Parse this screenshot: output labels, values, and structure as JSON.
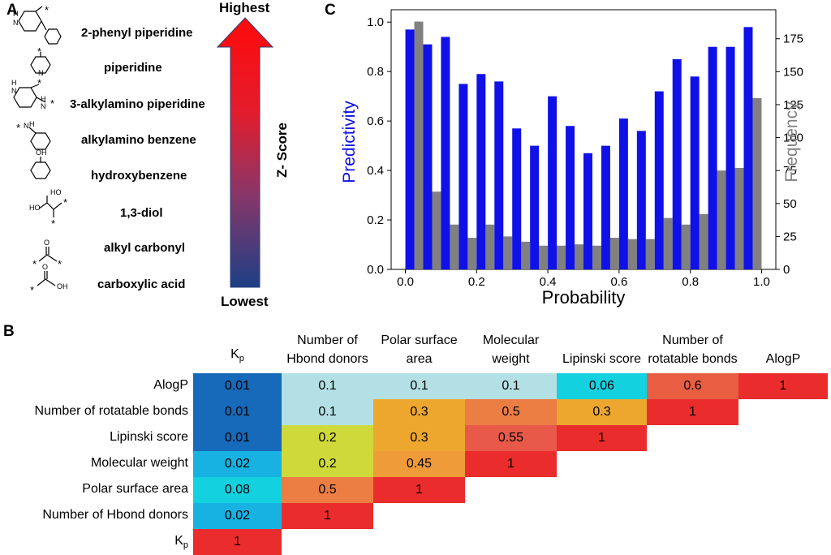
{
  "panels": {
    "a": "A",
    "b": "B",
    "c": "C"
  },
  "panel_a": {
    "fragments": [
      "2-phenyl piperidine",
      "piperidine",
      "3-alkylamino piperidine",
      "alkylamino benzene",
      "hydroxybenzene",
      "1,3-diol",
      "alkyl carbonyl",
      "carboxylic acid"
    ],
    "arrow_top_label": "Highest",
    "arrow_bottom_label": "Lowest",
    "arrow_axis_label": "Z- Score",
    "structure_text": {
      "star": "*",
      "nh": "N",
      "h": "H",
      "oh": "OH",
      "ho": "HO",
      "o": "O"
    }
  },
  "chart_data": [
    {
      "type": "bar",
      "panel": "C",
      "xlabel": "Probability",
      "x_ticks": [
        "0.0",
        "0.2",
        "0.4",
        "0.6",
        "0.8",
        "1.0"
      ],
      "xlim": [
        -0.04,
        1.04
      ],
      "bin_centers": [
        0.025,
        0.075,
        0.125,
        0.175,
        0.225,
        0.275,
        0.325,
        0.375,
        0.425,
        0.475,
        0.525,
        0.575,
        0.625,
        0.675,
        0.725,
        0.775,
        0.825,
        0.875,
        0.925,
        0.975
      ],
      "series": [
        {
          "name": "Predictivity",
          "axis": "left",
          "color": "#1010e8",
          "values": [
            0.97,
            0.91,
            0.94,
            0.75,
            0.79,
            0.76,
            0.57,
            0.5,
            0.7,
            0.58,
            0.47,
            0.5,
            0.61,
            0.56,
            0.72,
            0.85,
            0.78,
            0.9,
            0.9,
            0.98
          ]
        },
        {
          "name": "Frequency",
          "axis": "right",
          "color": "#808080",
          "values": [
            188,
            59,
            34,
            24,
            34,
            25,
            21,
            18,
            18,
            19,
            18,
            24,
            23,
            23,
            39,
            34,
            42,
            75,
            77,
            130
          ]
        }
      ],
      "ylabel_left": "Predictivity",
      "ylabel_right": "Frequency",
      "ylim_left": [
        0,
        1.05
      ],
      "ylim_right": [
        0,
        197
      ],
      "yticks_left": [
        "0.0",
        "0.2",
        "0.4",
        "0.6",
        "0.8",
        "1.0"
      ],
      "yticks_right": [
        "0",
        "25",
        "50",
        "75",
        "100",
        "125",
        "150",
        "175"
      ]
    },
    {
      "type": "heatmap",
      "panel": "B",
      "columns": [
        "Kp",
        "Number of Hbond donors",
        "Polar surface area",
        "Molecular weight",
        "Lipinski score",
        "Number of rotatable bonds",
        "AlogP"
      ],
      "rows": [
        "AlogP",
        "Number of rotatable bonds",
        "Lipinski score",
        "Molecular weight",
        "Polar surface area",
        "Number of Hbond donors",
        "Kp"
      ],
      "cells": [
        [
          "0.01",
          "0.1",
          "0.1",
          "0.1",
          "0.06",
          "0.6",
          "1"
        ],
        [
          "0.01",
          "0.1",
          "0.3",
          "0.5",
          "0.3",
          "1"
        ],
        [
          "0.01",
          "0.2",
          "0.3",
          "0.55",
          "1"
        ],
        [
          "0.02",
          "0.2",
          "0.45",
          "1"
        ],
        [
          "0.08",
          "0.5",
          "1"
        ],
        [
          "0.02",
          "1"
        ],
        [
          "1"
        ]
      ],
      "cell_colors": [
        [
          "#1769b9",
          "#b3e0e4",
          "#b3e0e4",
          "#b3e0e4",
          "#13d1df",
          "#e95e43",
          "#ea2c2c"
        ],
        [
          "#1769b9",
          "#b3e0e4",
          "#eda72f",
          "#ec7d43",
          "#eda72f",
          "#ea2c2c"
        ],
        [
          "#1769b9",
          "#cfd93a",
          "#eda72f",
          "#e8594a",
          "#ea2c2c"
        ],
        [
          "#17b2e2",
          "#cfd93a",
          "#f09b3a",
          "#ea2c2c"
        ],
        [
          "#13d1df",
          "#ec7d43",
          "#ea2c2c"
        ],
        [
          "#17b2e2",
          "#ea2c2c"
        ],
        [
          "#ea2c2c"
        ]
      ],
      "kp_parts": {
        "base": "K",
        "sub": "p"
      }
    }
  ]
}
